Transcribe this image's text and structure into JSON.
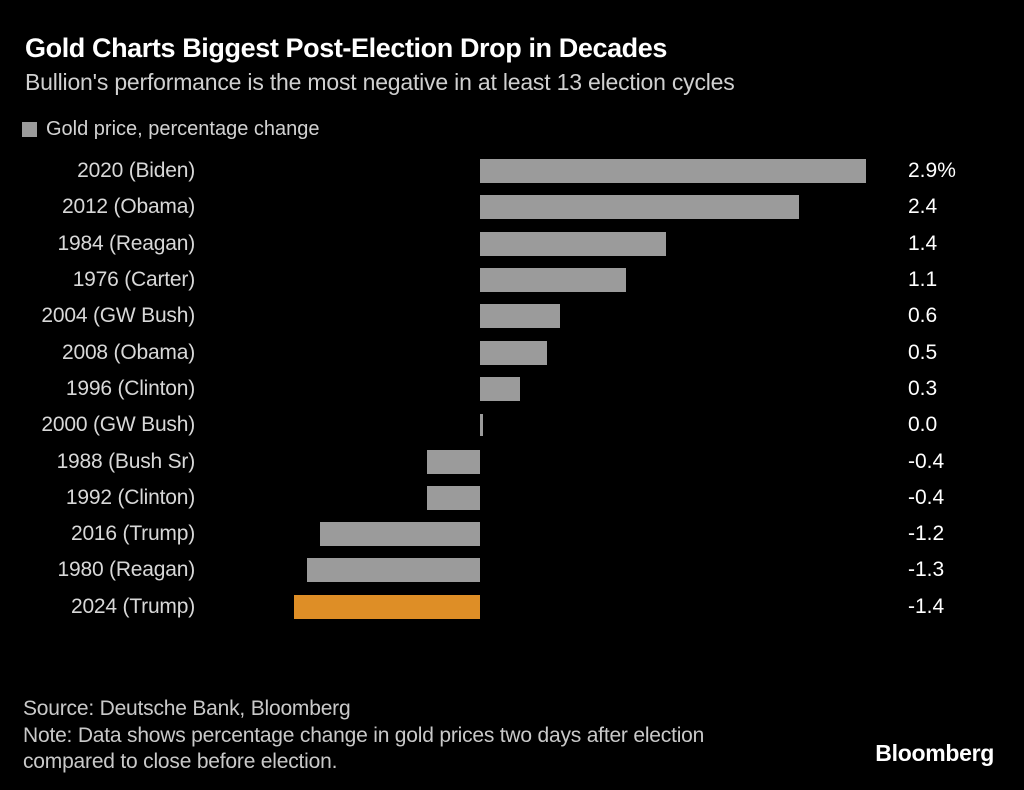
{
  "branding": {
    "logo": "Bloomberg"
  },
  "chart_data": {
    "type": "bar",
    "orientation": "horizontal",
    "title": "Gold Charts Biggest Post-Election Drop in Decades",
    "subtitle": "Bullion's performance is the most negative in at least 13 election cycles",
    "legend": [
      {
        "label": "Gold price, percentage change",
        "color": "#9b9b9b"
      }
    ],
    "value_unit": "percentage change",
    "xlim": [
      -1.6,
      3.1
    ],
    "grid": false,
    "bar_color": "#9b9b9b",
    "highlight_color": "#de8e26",
    "categories": [
      "2020 (Biden)",
      "2012 (Obama)",
      "1984 (Reagan)",
      "1976 (Carter)",
      "2004 (GW Bush)",
      "2008 (Obama)",
      "1996 (Clinton)",
      "2000 (GW Bush)",
      "1988 (Bush Sr)",
      "1992 (Clinton)",
      "2016 (Trump)",
      "1980 (Reagan)",
      "2024 (Trump)"
    ],
    "rows": [
      {
        "category": "2020 (Biden)",
        "value": 2.9,
        "display": "2.9%",
        "highlight": false
      },
      {
        "category": "2012 (Obama)",
        "value": 2.4,
        "display": "2.4",
        "highlight": false
      },
      {
        "category": "1984 (Reagan)",
        "value": 1.4,
        "display": "1.4",
        "highlight": false
      },
      {
        "category": "1976 (Carter)",
        "value": 1.1,
        "display": "1.1",
        "highlight": false
      },
      {
        "category": "2004 (GW Bush)",
        "value": 0.6,
        "display": "0.6",
        "highlight": false
      },
      {
        "category": "2008 (Obama)",
        "value": 0.5,
        "display": "0.5",
        "highlight": false
      },
      {
        "category": "1996 (Clinton)",
        "value": 0.3,
        "display": "0.3",
        "highlight": false
      },
      {
        "category": "2000 (GW Bush)",
        "value": 0.0,
        "display": "0.0",
        "highlight": false
      },
      {
        "category": "1988 (Bush Sr)",
        "value": -0.4,
        "display": "-0.4",
        "highlight": false
      },
      {
        "category": "1992 (Clinton)",
        "value": -0.4,
        "display": "-0.4",
        "highlight": false
      },
      {
        "category": "2016 (Trump)",
        "value": -1.2,
        "display": "-1.2",
        "highlight": false
      },
      {
        "category": "1980 (Reagan)",
        "value": -1.3,
        "display": "-1.3",
        "highlight": false
      },
      {
        "category": "2024 (Trump)",
        "value": -1.4,
        "display": "-1.4",
        "highlight": true
      }
    ],
    "source": "Source: Deutsche Bank, Bloomberg",
    "note": "Note: Data shows percentage change in gold prices two days after election compared to close before election."
  }
}
